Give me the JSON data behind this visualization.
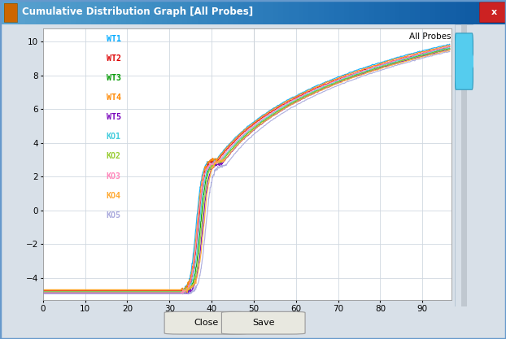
{
  "title": "Cumulative Distribution Graph [All Probes]",
  "xlim": [
    0,
    97
  ],
  "ylim": [
    -5.3,
    10.8
  ],
  "yticks": [
    -4,
    -2,
    0,
    2,
    4,
    6,
    8,
    10
  ],
  "xticks": [
    0,
    10,
    20,
    30,
    40,
    50,
    60,
    70,
    80,
    90
  ],
  "series": [
    {
      "name": "WT1",
      "color": "#00aaff"
    },
    {
      "name": "WT2",
      "color": "#dd0000"
    },
    {
      "name": "WT3",
      "color": "#009900"
    },
    {
      "name": "WT4",
      "color": "#ff8800"
    },
    {
      "name": "WT5",
      "color": "#7700bb"
    },
    {
      "name": "KO1",
      "color": "#44ccdd"
    },
    {
      "name": "KO2",
      "color": "#99cc33"
    },
    {
      "name": "KO3",
      "color": "#ff88bb"
    },
    {
      "name": "KO4",
      "color": "#ffaa33"
    },
    {
      "name": "KO5",
      "color": "#aaaadd"
    }
  ],
  "annotation": "All Probes",
  "vline_x": 50,
  "titlebar_color": "#6699cc",
  "titlebar_gradient_top": "#aabbdd",
  "dialog_bg": "#d8e0e8",
  "plot_bg": "#ffffff",
  "scrollbar_bg": "#e0e8f0",
  "scrollbar_track": "#c8d0d8",
  "thumb_color": "#66ccee",
  "bottom_bg": "#d8e0e8",
  "btn_bg": "#e8e8e0",
  "btn_border": "#888888",
  "grid_color": "#d0d8e0",
  "spine_color": "#999999"
}
